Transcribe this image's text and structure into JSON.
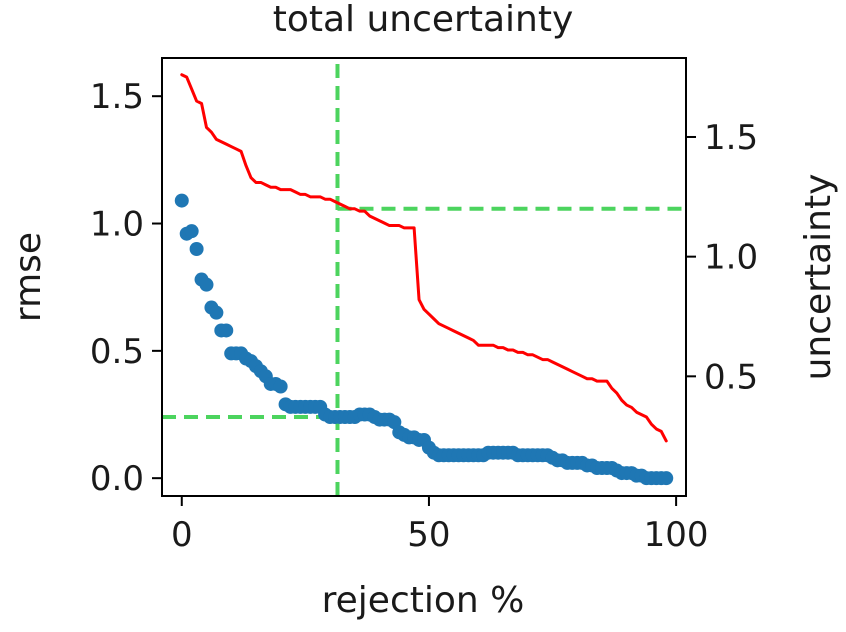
{
  "chart_data": {
    "type": "scatter",
    "title": "total uncertainty",
    "xlabel": "rejection %",
    "ylabel": "rmse",
    "y2label": "uncertainty",
    "xlim": [
      -4,
      102
    ],
    "ylim": [
      -0.07,
      1.65
    ],
    "y2lim": [
      0.0,
      1.83
    ],
    "xticks": [
      0,
      50,
      100
    ],
    "xtick_labels": [
      "0",
      "50",
      "100"
    ],
    "yticks": [
      0.0,
      0.5,
      1.0,
      1.5
    ],
    "ytick_labels": [
      "0.0",
      "0.5",
      "1.0",
      "1.5"
    ],
    "y2ticks": [
      0.5,
      1.0,
      1.5
    ],
    "y2tick_labels": [
      "0.5",
      "1.0",
      "1.5"
    ],
    "grid": false,
    "legend": "none",
    "series": [
      {
        "kind": "scatter",
        "axis": "left",
        "color": "#1f77b4",
        "points": [
          [
            0,
            1.09
          ],
          [
            1,
            0.96
          ],
          [
            2,
            0.97
          ],
          [
            3,
            0.9
          ],
          [
            4,
            0.78
          ],
          [
            5,
            0.76
          ],
          [
            6,
            0.67
          ],
          [
            7,
            0.65
          ],
          [
            8,
            0.58
          ],
          [
            9,
            0.58
          ],
          [
            10,
            0.49
          ],
          [
            11,
            0.49
          ],
          [
            12,
            0.49
          ],
          [
            13,
            0.47
          ],
          [
            14,
            0.46
          ],
          [
            15,
            0.44
          ],
          [
            16,
            0.42
          ],
          [
            17,
            0.4
          ],
          [
            18,
            0.37
          ],
          [
            19,
            0.37
          ],
          [
            20,
            0.36
          ],
          [
            21,
            0.29
          ],
          [
            22,
            0.28
          ],
          [
            23,
            0.28
          ],
          [
            24,
            0.28
          ],
          [
            25,
            0.28
          ],
          [
            26,
            0.28
          ],
          [
            27,
            0.28
          ],
          [
            28,
            0.28
          ],
          [
            29,
            0.25
          ],
          [
            30,
            0.24
          ],
          [
            31,
            0.24
          ],
          [
            32,
            0.24
          ],
          [
            33,
            0.24
          ],
          [
            34,
            0.24
          ],
          [
            35,
            0.24
          ],
          [
            36,
            0.25
          ],
          [
            37,
            0.25
          ],
          [
            38,
            0.25
          ],
          [
            39,
            0.24
          ],
          [
            40,
            0.23
          ],
          [
            41,
            0.23
          ],
          [
            42,
            0.23
          ],
          [
            43,
            0.22
          ],
          [
            44,
            0.18
          ],
          [
            45,
            0.17
          ],
          [
            46,
            0.16
          ],
          [
            47,
            0.16
          ],
          [
            48,
            0.15
          ],
          [
            49,
            0.15
          ],
          [
            50,
            0.12
          ],
          [
            51,
            0.1
          ],
          [
            52,
            0.09
          ],
          [
            53,
            0.09
          ],
          [
            54,
            0.09
          ],
          [
            55,
            0.09
          ],
          [
            56,
            0.09
          ],
          [
            57,
            0.09
          ],
          [
            58,
            0.09
          ],
          [
            59,
            0.09
          ],
          [
            60,
            0.09
          ],
          [
            61,
            0.09
          ],
          [
            62,
            0.1
          ],
          [
            63,
            0.1
          ],
          [
            64,
            0.1
          ],
          [
            65,
            0.1
          ],
          [
            66,
            0.1
          ],
          [
            67,
            0.1
          ],
          [
            68,
            0.09
          ],
          [
            69,
            0.09
          ],
          [
            70,
            0.09
          ],
          [
            71,
            0.09
          ],
          [
            72,
            0.09
          ],
          [
            73,
            0.09
          ],
          [
            74,
            0.09
          ],
          [
            75,
            0.08
          ],
          [
            76,
            0.07
          ],
          [
            77,
            0.07
          ],
          [
            78,
            0.06
          ],
          [
            79,
            0.06
          ],
          [
            80,
            0.06
          ],
          [
            81,
            0.06
          ],
          [
            82,
            0.05
          ],
          [
            83,
            0.05
          ],
          [
            84,
            0.04
          ],
          [
            85,
            0.04
          ],
          [
            86,
            0.04
          ],
          [
            87,
            0.04
          ],
          [
            88,
            0.03
          ],
          [
            89,
            0.02
          ],
          [
            90,
            0.02
          ],
          [
            91,
            0.02
          ],
          [
            92,
            0.01
          ],
          [
            93,
            0.01
          ],
          [
            94,
            0.0
          ],
          [
            95,
            0.0
          ],
          [
            96,
            0.0
          ],
          [
            97,
            0.0
          ],
          [
            98,
            0.0
          ]
        ]
      },
      {
        "kind": "line",
        "axis": "right",
        "color": "#ff0000",
        "points": [
          [
            0,
            1.76
          ],
          [
            1,
            1.75
          ],
          [
            2,
            1.7
          ],
          [
            3,
            1.65
          ],
          [
            4,
            1.64
          ],
          [
            5,
            1.54
          ],
          [
            6,
            1.52
          ],
          [
            7,
            1.49
          ],
          [
            8,
            1.48
          ],
          [
            9,
            1.47
          ],
          [
            10,
            1.46
          ],
          [
            11,
            1.45
          ],
          [
            12,
            1.44
          ],
          [
            13,
            1.38
          ],
          [
            14,
            1.33
          ],
          [
            15,
            1.31
          ],
          [
            16,
            1.31
          ],
          [
            17,
            1.3
          ],
          [
            18,
            1.29
          ],
          [
            19,
            1.29
          ],
          [
            20,
            1.28
          ],
          [
            21,
            1.28
          ],
          [
            22,
            1.28
          ],
          [
            23,
            1.27
          ],
          [
            24,
            1.26
          ],
          [
            25,
            1.26
          ],
          [
            26,
            1.25
          ],
          [
            27,
            1.25
          ],
          [
            28,
            1.25
          ],
          [
            29,
            1.24
          ],
          [
            30,
            1.24
          ],
          [
            31,
            1.23
          ],
          [
            32,
            1.22
          ],
          [
            33,
            1.21
          ],
          [
            34,
            1.2
          ],
          [
            35,
            1.2
          ],
          [
            36,
            1.19
          ],
          [
            37,
            1.19
          ],
          [
            38,
            1.17
          ],
          [
            39,
            1.16
          ],
          [
            40,
            1.15
          ],
          [
            41,
            1.14
          ],
          [
            42,
            1.13
          ],
          [
            43,
            1.13
          ],
          [
            44,
            1.13
          ],
          [
            45,
            1.12
          ],
          [
            46,
            1.12
          ],
          [
            47,
            1.12
          ],
          [
            48,
            0.82
          ],
          [
            49,
            0.78
          ],
          [
            50,
            0.76
          ],
          [
            51,
            0.74
          ],
          [
            52,
            0.72
          ],
          [
            53,
            0.71
          ],
          [
            54,
            0.7
          ],
          [
            55,
            0.69
          ],
          [
            56,
            0.68
          ],
          [
            57,
            0.67
          ],
          [
            58,
            0.66
          ],
          [
            59,
            0.65
          ],
          [
            60,
            0.63
          ],
          [
            61,
            0.63
          ],
          [
            62,
            0.63
          ],
          [
            63,
            0.63
          ],
          [
            64,
            0.62
          ],
          [
            65,
            0.62
          ],
          [
            66,
            0.61
          ],
          [
            67,
            0.61
          ],
          [
            68,
            0.6
          ],
          [
            69,
            0.6
          ],
          [
            70,
            0.59
          ],
          [
            71,
            0.59
          ],
          [
            72,
            0.58
          ],
          [
            73,
            0.57
          ],
          [
            74,
            0.57
          ],
          [
            75,
            0.56
          ],
          [
            76,
            0.55
          ],
          [
            77,
            0.54
          ],
          [
            78,
            0.53
          ],
          [
            79,
            0.52
          ],
          [
            80,
            0.51
          ],
          [
            81,
            0.5
          ],
          [
            82,
            0.49
          ],
          [
            83,
            0.49
          ],
          [
            84,
            0.48
          ],
          [
            85,
            0.48
          ],
          [
            86,
            0.48
          ],
          [
            87,
            0.45
          ],
          [
            88,
            0.43
          ],
          [
            89,
            0.4
          ],
          [
            90,
            0.38
          ],
          [
            91,
            0.37
          ],
          [
            92,
            0.35
          ],
          [
            93,
            0.34
          ],
          [
            94,
            0.33
          ],
          [
            95,
            0.3
          ],
          [
            96,
            0.28
          ],
          [
            97,
            0.27
          ],
          [
            98,
            0.23
          ]
        ]
      }
    ],
    "reference_lines": [
      {
        "orientation": "vertical",
        "axis": "bottom",
        "value": 31.5,
        "range": [
          -0.07,
          1.65
        ],
        "color": "#4cd45e",
        "dashed": true
      },
      {
        "orientation": "horizontal",
        "axis": "right",
        "value": 1.2,
        "range": [
          31.5,
          102
        ],
        "color": "#4cd45e",
        "dashed": true
      },
      {
        "orientation": "horizontal",
        "axis": "left",
        "value": 0.24,
        "range": [
          -4,
          31.5
        ],
        "color": "#4cd45e",
        "dashed": true
      }
    ]
  }
}
